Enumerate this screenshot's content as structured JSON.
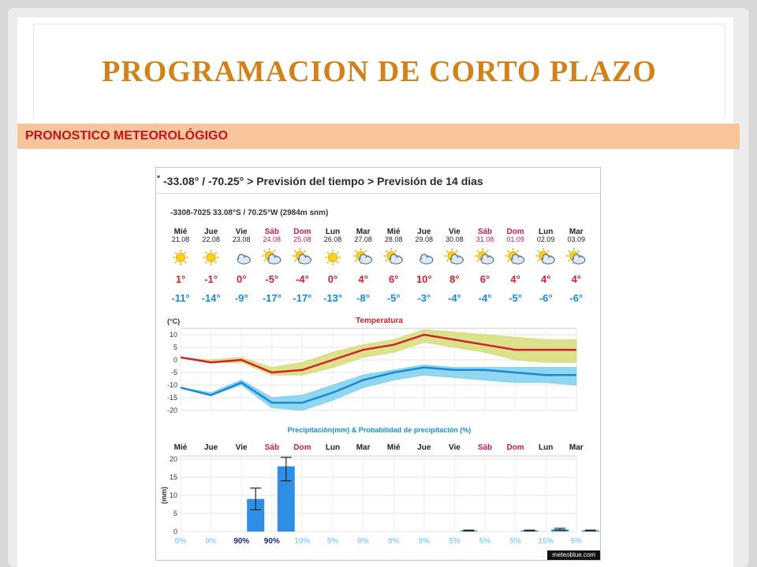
{
  "slide": {
    "title": "PROGRAMACION DE CORTO PLAZO",
    "section": "PRONOSTICO METEOROLÓGIGO"
  },
  "forecast": {
    "breadcrumb": "-33.08° / -70.25° > Previsión del tiempo > Previsión de 14 dias",
    "location": "-3308-7025  33.08°S / 70.25°W (2984m snm)",
    "watermark": "meteoblue.com",
    "days": [
      {
        "day": "Mié",
        "date": "21.08",
        "weekend": false,
        "icon": "sun-icon",
        "max": "1°",
        "min": "-11°"
      },
      {
        "day": "Jue",
        "date": "22.08",
        "weekend": false,
        "icon": "sun-icon",
        "max": "-1°",
        "min": "-14°"
      },
      {
        "day": "Vie",
        "date": "23.08",
        "weekend": false,
        "icon": "snow-cloud-icon",
        "max": "0°",
        "min": "-9°"
      },
      {
        "day": "Sáb",
        "date": "24.08",
        "weekend": true,
        "icon": "sun-snow-cloud-icon",
        "max": "-5°",
        "min": "-17°"
      },
      {
        "day": "Dom",
        "date": "25.08",
        "weekend": true,
        "icon": "sun-cloud-icon",
        "max": "-4°",
        "min": "-17°"
      },
      {
        "day": "Lun",
        "date": "26.08",
        "weekend": false,
        "icon": "sun-icon",
        "max": "0°",
        "min": "-13°"
      },
      {
        "day": "Mar",
        "date": "27.08",
        "weekend": false,
        "icon": "sun-cloud-icon",
        "max": "4°",
        "min": "-8°"
      },
      {
        "day": "Mié",
        "date": "28.08",
        "weekend": false,
        "icon": "sun-cloud-icon",
        "max": "6°",
        "min": "-5°"
      },
      {
        "day": "Jue",
        "date": "29.08",
        "weekend": false,
        "icon": "cloud-icon",
        "max": "10°",
        "min": "-3°"
      },
      {
        "day": "Vie",
        "date": "30.08",
        "weekend": false,
        "icon": "sun-cloud-icon",
        "max": "8°",
        "min": "-4°"
      },
      {
        "day": "Sáb",
        "date": "31.08",
        "weekend": true,
        "icon": "sun-cloud-icon",
        "max": "6°",
        "min": "-4°"
      },
      {
        "day": "Dom",
        "date": "01.09",
        "weekend": true,
        "icon": "sun-cloud-icon",
        "max": "4°",
        "min": "-5°"
      },
      {
        "day": "Lun",
        "date": "02.09",
        "weekend": false,
        "icon": "sun-cloud-icon",
        "max": "4°",
        "min": "-6°"
      },
      {
        "day": "Mar",
        "date": "03.09",
        "weekend": false,
        "icon": "sun-cloud-icon",
        "max": "4°",
        "min": "-6°"
      }
    ]
  },
  "chart_data": [
    {
      "type": "line",
      "title": "Temperatura",
      "ylabel": "(°C)",
      "ylim": [
        -20,
        10
      ],
      "yticks": [
        10,
        5,
        0,
        -5,
        -10,
        -15,
        -20
      ],
      "grid": true,
      "x": [
        "Mié",
        "Jue",
        "Vie",
        "Sáb",
        "Dom",
        "Lun",
        "Mar",
        "Mié",
        "Jue",
        "Vie",
        "Sáb",
        "Dom",
        "Lun",
        "Mar"
      ],
      "series": [
        {
          "values": [
            1,
            -1,
            0,
            -5,
            -4,
            0,
            4,
            6,
            10,
            8,
            6,
            4,
            4,
            4
          ],
          "band_high": [
            1,
            0,
            1,
            -3,
            -1,
            3,
            6,
            8,
            12,
            11,
            10,
            9,
            8,
            8
          ],
          "band_low": [
            1,
            -1,
            -1,
            -6,
            -6,
            -3,
            1,
            3,
            7,
            5,
            3,
            0,
            -1,
            -1
          ],
          "color": "#d0202a",
          "band_color": "#d6dc78"
        },
        {
          "values": [
            -11,
            -14,
            -9,
            -17,
            -17,
            -13,
            -8,
            -5,
            -3,
            -4,
            -4,
            -5,
            -6,
            -6
          ],
          "band_high": [
            -11,
            -13,
            -8,
            -15,
            -14,
            -10,
            -6,
            -4,
            -2,
            -3,
            -3,
            -3,
            -3,
            -3
          ],
          "band_low": [
            -11,
            -14,
            -10,
            -19,
            -20,
            -16,
            -11,
            -8,
            -6,
            -7,
            -8,
            -9,
            -9,
            -10
          ],
          "color": "#1a8bd0",
          "band_color": "#7fd0ee"
        }
      ]
    },
    {
      "type": "bar",
      "title": "Precipitación(mm) & Probabilidad de precipitación (%)",
      "ylabel": "(mm)",
      "ylim": [
        0,
        20
      ],
      "yticks": [
        20,
        15,
        10,
        5,
        0
      ],
      "categories": [
        "Mié",
        "Jue",
        "Vie",
        "Sáb",
        "Dom",
        "Lun",
        "Mar",
        "Mié",
        "Jue",
        "Vie",
        "Sáb",
        "Dom",
        "Lun",
        "Mar"
      ],
      "values": [
        0,
        0,
        9,
        18,
        0,
        0,
        0,
        0,
        0,
        0.3,
        0,
        0.3,
        0.6,
        0.3
      ],
      "error_low": [
        0,
        0,
        6,
        14,
        0,
        0,
        0,
        0,
        0,
        0.2,
        0,
        0.2,
        0.4,
        0.2
      ],
      "error_high": [
        0,
        0,
        12,
        20.5,
        0,
        0,
        0,
        0,
        0,
        0.4,
        0,
        0.4,
        0.9,
        0.4
      ],
      "probability": [
        "0%",
        "0%",
        "90%",
        "90%",
        "10%",
        "5%",
        "0%",
        "0%",
        "0%",
        "5%",
        "5%",
        "5%",
        "15%",
        "5%"
      ],
      "bar_color": "#2f8fe6"
    }
  ]
}
